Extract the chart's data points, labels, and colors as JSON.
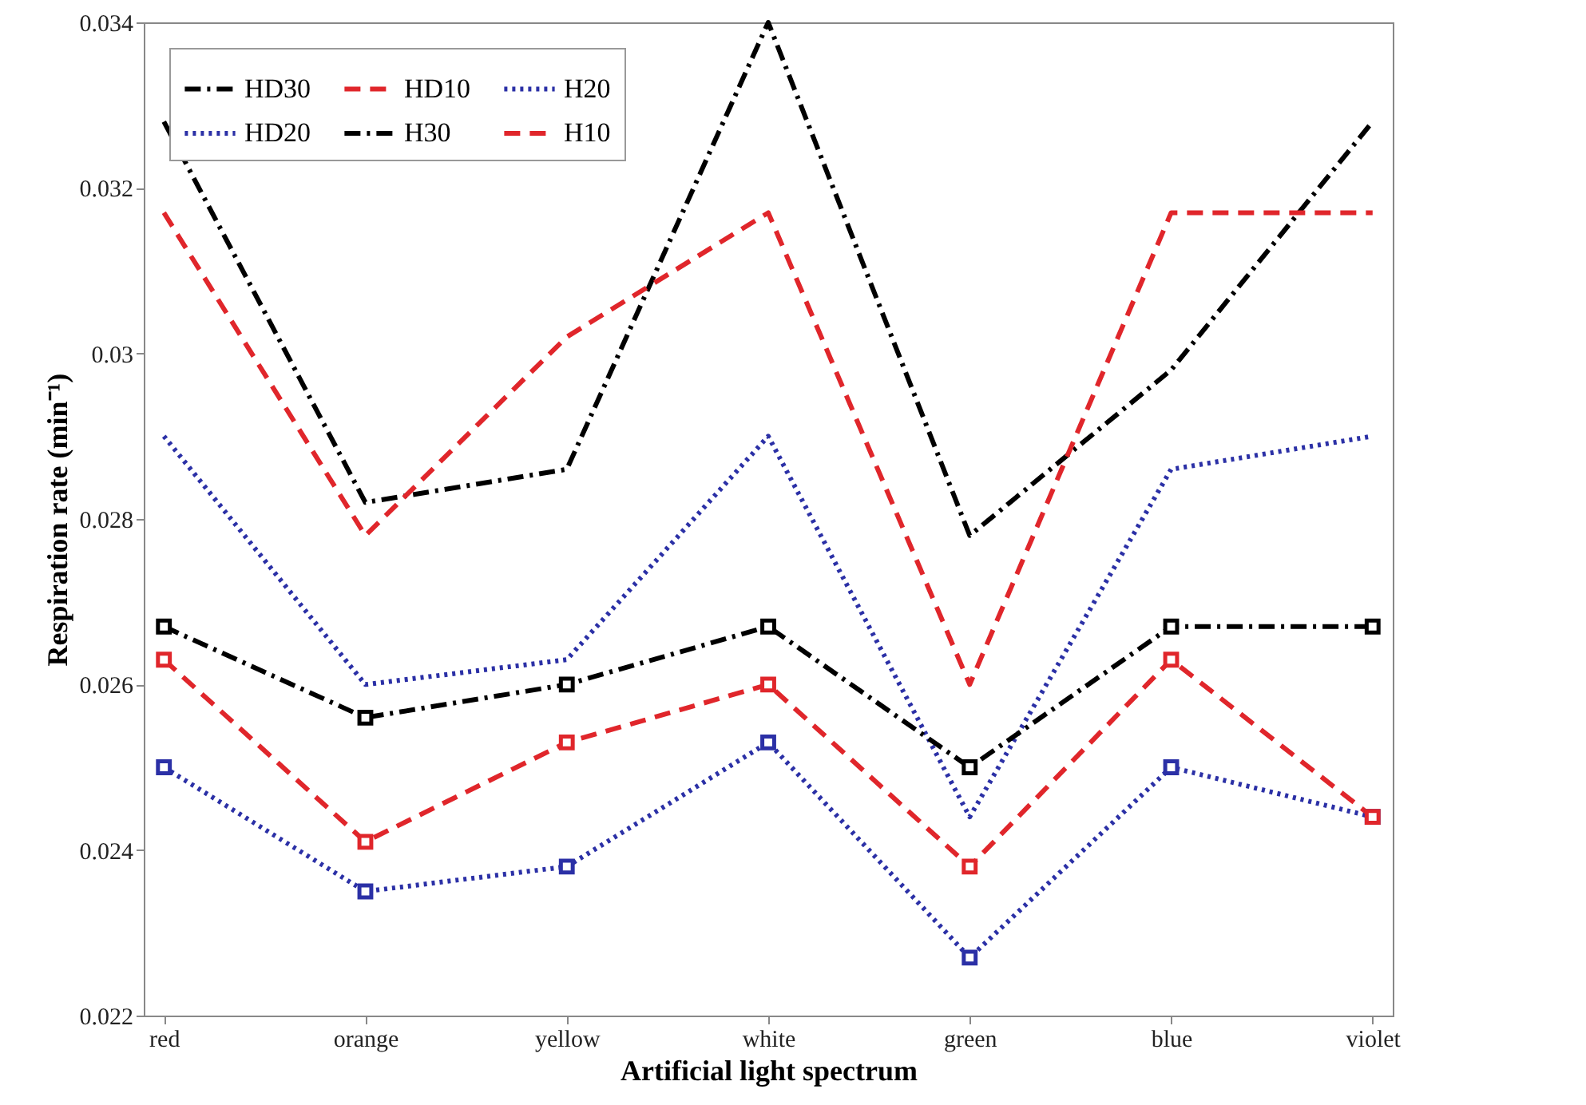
{
  "chart_data": {
    "type": "line",
    "xlabel": "Artificial light spectrum",
    "ylabel": "Respiration rate (min⁻¹)",
    "categories": [
      "red",
      "orange",
      "yellow",
      "white",
      "green",
      "blue",
      "violet"
    ],
    "ylim": [
      0.022,
      0.034
    ],
    "yticks": [
      0.022,
      0.024,
      0.026,
      0.028,
      0.03,
      0.032,
      0.034
    ],
    "grid": false,
    "legend": "top left",
    "series": [
      {
        "name": "HD30",
        "color": "#000000",
        "line_style": "dashdot",
        "marker": "none",
        "values": [
          0.0328,
          0.0282,
          0.0286,
          0.034,
          0.0278,
          0.0298,
          0.0328
        ]
      },
      {
        "name": "HD20",
        "color": "#2b30a6",
        "line_style": "dotted",
        "marker": "none",
        "values": [
          0.029,
          0.026,
          0.0263,
          0.029,
          0.0244,
          0.0286,
          0.029
        ]
      },
      {
        "name": "HD10",
        "color": "#e0262b",
        "line_style": "dashed",
        "marker": "none",
        "values": [
          0.0317,
          0.0278,
          0.0302,
          0.0317,
          0.026,
          0.0317,
          0.0317
        ]
      },
      {
        "name": "H30",
        "color": "#000000",
        "line_style": "dashdot",
        "marker": "square",
        "values": [
          0.0267,
          0.0256,
          0.026,
          0.0267,
          0.025,
          0.0267,
          0.0267
        ]
      },
      {
        "name": "H20",
        "color": "#2b30a6",
        "line_style": "dotted",
        "marker": "square",
        "values": [
          0.025,
          0.0235,
          0.0238,
          0.0253,
          0.0227,
          0.025,
          0.0244
        ]
      },
      {
        "name": "H10",
        "color": "#e0262b",
        "line_style": "dashed",
        "marker": "square",
        "values": [
          0.0263,
          0.0241,
          0.0253,
          0.026,
          0.0238,
          0.0263,
          0.0244
        ]
      }
    ]
  }
}
